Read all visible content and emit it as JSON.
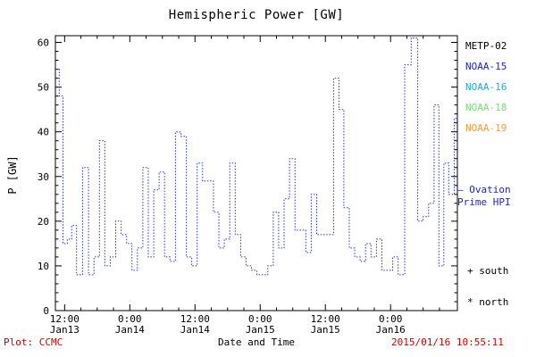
{
  "title": "Hemispheric Power [GW]",
  "legend": {
    "satellites": [
      {
        "label": "METP-02",
        "color": "#000000"
      },
      {
        "label": "NOAA-15",
        "color": "#2222cc"
      },
      {
        "label": "NOAA-16",
        "color": "#22aadd"
      },
      {
        "label": "NOAA-18",
        "color": "#77dd77"
      },
      {
        "label": "NOAA-19",
        "color": "#ff9933"
      }
    ],
    "model_label_line1": "— Ovation",
    "model_label_line2": "Prime HPI",
    "model_color": "#2222cc",
    "south_label": "+ south",
    "north_label": "* north"
  },
  "footer": {
    "plot_credit": "Plot: CCMC",
    "xlabel": "Date and Time",
    "timestamp": "2015/01/16 10:55:11",
    "credit_color": "#cc0000"
  },
  "chart_data": {
    "type": "line",
    "title": "Hemispheric Power [GW]",
    "xlabel": "Date and Time",
    "ylabel": "P [GW]",
    "ylim": [
      0,
      61.5
    ],
    "yticks": [
      0,
      10,
      20,
      30,
      40,
      50,
      60
    ],
    "xlim_hours": [
      10.3,
      84.3
    ],
    "x_hours_reference": "hours since 2015 Jan 13 00:00",
    "xticks": [
      {
        "hours": 12,
        "time": "12:00",
        "date": "Jan13"
      },
      {
        "hours": 24,
        "time": "0:00",
        "date": "Jan14"
      },
      {
        "hours": 36,
        "time": "12:00",
        "date": "Jan14"
      },
      {
        "hours": 48,
        "time": "0:00",
        "date": "Jan15"
      },
      {
        "hours": 60,
        "time": "12:00",
        "date": "Jan15"
      },
      {
        "hours": 72,
        "time": "0:00",
        "date": "Jan16"
      }
    ],
    "grid": false,
    "legend_position": "right",
    "line": {
      "style": "dotted-step",
      "color": "#2233cc"
    },
    "series": [
      {
        "name": "Ovation Prime HPI",
        "x_hours": [
          10.4,
          11.0,
          11.7,
          12.5,
          13.3,
          14.2,
          15.3,
          16.4,
          17.4,
          18.4,
          19.4,
          20.4,
          21.4,
          22.4,
          23.4,
          24.4,
          25.4,
          26.4,
          27.4,
          28.4,
          29.4,
          30.4,
          31.4,
          32.4,
          33.4,
          34.4,
          35.4,
          36.4,
          37.4,
          38.4,
          39.4,
          40.4,
          41.4,
          42.4,
          43.4,
          44.4,
          45.4,
          46.4,
          47.4,
          48.4,
          49.4,
          50.4,
          51.4,
          52.4,
          53.4,
          54.4,
          55.4,
          56.4,
          57.4,
          58.4,
          59.4,
          60.4,
          61.5,
          62.5,
          63.4,
          64.4,
          65.4,
          66.4,
          67.4,
          68.4,
          69.4,
          70.4,
          71.4,
          72.4,
          73.4,
          74.6,
          75.8,
          77.0,
          78.0,
          79.0,
          80.0,
          80.9,
          81.8,
          82.7,
          83.7
        ],
        "values": [
          54,
          48,
          15,
          16,
          19,
          8,
          32,
          8,
          12,
          38,
          10,
          12,
          20,
          17,
          15,
          9,
          14,
          32,
          12,
          27,
          31,
          12,
          11,
          40,
          39,
          12,
          10,
          33,
          29,
          29,
          22,
          14,
          16,
          33,
          17,
          12,
          10,
          9,
          8,
          8,
          10,
          22,
          14,
          25,
          34,
          18,
          18,
          13,
          26,
          17,
          17,
          17,
          52,
          45,
          23,
          14,
          12,
          11,
          15,
          12,
          16,
          9,
          9,
          12,
          8,
          55,
          61,
          20,
          21,
          24,
          46,
          10,
          33,
          26,
          43
        ]
      }
    ]
  }
}
